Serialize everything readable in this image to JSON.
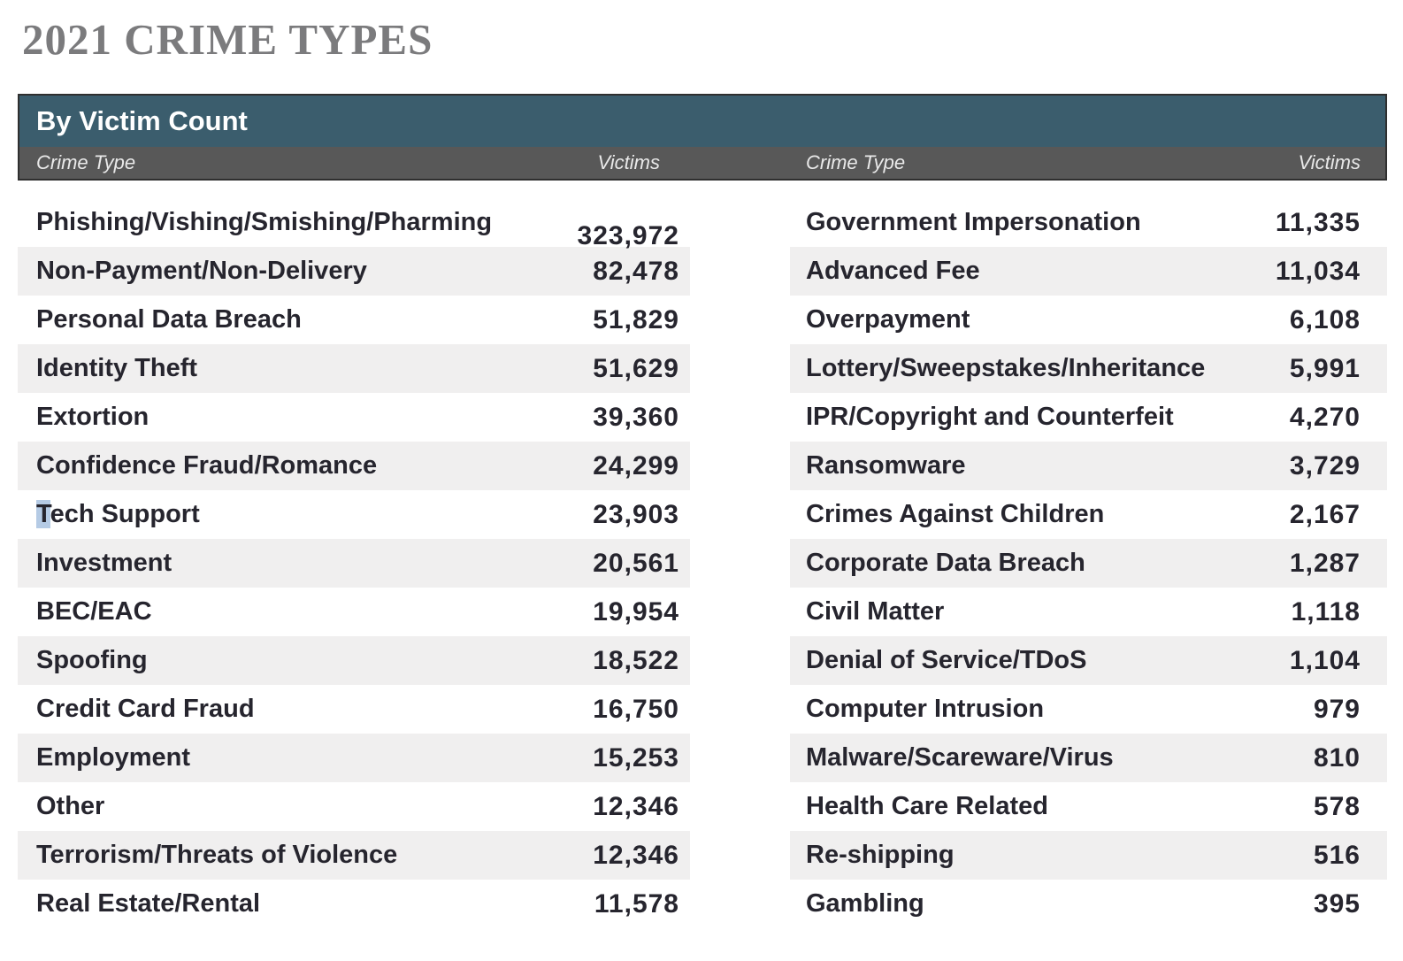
{
  "title": "2021 CRIME TYPES",
  "table": {
    "section_header": "By Victim Count",
    "column_headers": {
      "crime_type": "Crime Type",
      "victims": "Victims"
    },
    "left_column": [
      {
        "crime_type": "Phishing/Vishing/Smishing/Pharming",
        "victims": "323,972"
      },
      {
        "crime_type": "Non-Payment/Non-Delivery",
        "victims": "82,478"
      },
      {
        "crime_type": "Personal Data Breach",
        "victims": "51,829"
      },
      {
        "crime_type": "Identity Theft",
        "victims": "51,629"
      },
      {
        "crime_type": "Extortion",
        "victims": "39,360"
      },
      {
        "crime_type": "Confidence Fraud/Romance",
        "victims": "24,299"
      },
      {
        "crime_type": "Tech Support",
        "victims": "23,903",
        "selected_prefix_chars": 1
      },
      {
        "crime_type": "Investment",
        "victims": "20,561"
      },
      {
        "crime_type": "BEC/EAC",
        "victims": "19,954"
      },
      {
        "crime_type": "Spoofing",
        "victims": "18,522"
      },
      {
        "crime_type": "Credit Card Fraud",
        "victims": "16,750"
      },
      {
        "crime_type": "Employment",
        "victims": "15,253"
      },
      {
        "crime_type": "Other",
        "victims": "12,346"
      },
      {
        "crime_type": "Terrorism/Threats of Violence",
        "victims": "12,346"
      },
      {
        "crime_type": "Real Estate/Rental",
        "victims": "11,578"
      }
    ],
    "right_column": [
      {
        "crime_type": "Government Impersonation",
        "victims": "11,335"
      },
      {
        "crime_type": "Advanced Fee",
        "victims": "11,034"
      },
      {
        "crime_type": "Overpayment",
        "victims": "6,108"
      },
      {
        "crime_type": "Lottery/Sweepstakes/Inheritance",
        "victims": "5,991"
      },
      {
        "crime_type": "IPR/Copyright and Counterfeit",
        "victims": "4,270"
      },
      {
        "crime_type": "Ransomware",
        "victims": "3,729"
      },
      {
        "crime_type": "Crimes Against Children",
        "victims": "2,167"
      },
      {
        "crime_type": "Corporate Data Breach",
        "victims": "1,287"
      },
      {
        "crime_type": "Civil Matter",
        "victims": "1,118"
      },
      {
        "crime_type": "Denial of Service/TDoS",
        "victims": "1,104"
      },
      {
        "crime_type": "Computer Intrusion",
        "victims": "979"
      },
      {
        "crime_type": "Malware/Scareware/Virus",
        "victims": "810"
      },
      {
        "crime_type": "Health Care Related",
        "victims": "578"
      },
      {
        "crime_type": "Re-shipping",
        "victims": "516"
      },
      {
        "crime_type": "Gambling",
        "victims": "395"
      }
    ]
  },
  "colors": {
    "section_header_bg": "#3b5d6d",
    "column_header_bg": "#585858",
    "column_header_text": "#e9e9e9",
    "header_border": "#2f2f2f",
    "stripe_bg": "#f0efef",
    "row_text": "#26252e",
    "title_text": "#7b7b7d",
    "selection_highlight": "#b5cbe5"
  }
}
